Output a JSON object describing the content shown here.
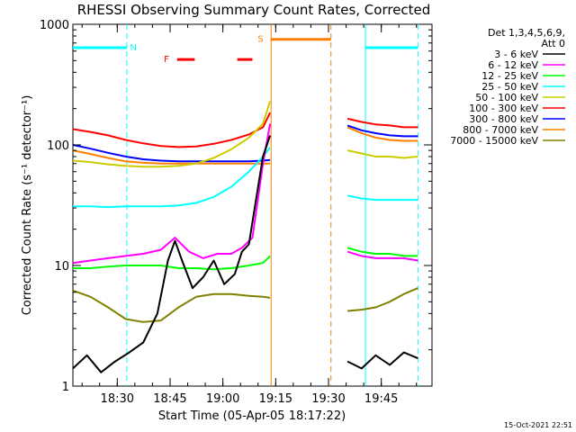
{
  "chart_data": {
    "type": "line",
    "title": "RHESSI Observing Summary Count Rates, Corrected",
    "xlabel": "Start Time (05-Apr-05 18:17:22)",
    "ylabel": "Corrected Count Rate (s⁻¹ detector⁻¹)",
    "yscale": "log",
    "ylim": [
      1,
      1000
    ],
    "xlim_minutes": [
      0,
      102
    ],
    "x_ticks": [
      {
        "label": "18:30",
        "value": 12.6
      },
      {
        "label": "18:45",
        "value": 27.6
      },
      {
        "label": "19:00",
        "value": 42.6
      },
      {
        "label": "19:15",
        "value": 57.6
      },
      {
        "label": "19:30",
        "value": 72.6
      },
      {
        "label": "19:45",
        "value": 87.6
      }
    ],
    "y_ticks": [
      {
        "label": "1",
        "value": 1
      },
      {
        "label": "10",
        "value": 10
      },
      {
        "label": "100",
        "value": 100
      },
      {
        "label": "1000",
        "value": 1000
      }
    ],
    "legend": {
      "header": [
        "Det 1,3,4,5,6,9,",
        "Att 0"
      ],
      "placement": "right"
    },
    "series": [
      {
        "name": "3 - 6 keV",
        "color": "#000000",
        "segments": [
          {
            "x": [
              0,
              4,
              8,
              12,
              16,
              20,
              24,
              27,
              29,
              31,
              34,
              37,
              40,
              43,
              46,
              48,
              50,
              52,
              54,
              56
            ],
            "y": [
              1.4,
              1.8,
              1.3,
              1.6,
              1.9,
              2.3,
              4,
              11,
              16,
              11,
              6.5,
              8,
              11,
              7,
              8.5,
              13,
              15,
              35,
              80,
              120
            ]
          },
          {
            "x": [
              78,
              82,
              86,
              90,
              94,
              98
            ],
            "y": [
              1.6,
              1.4,
              1.8,
              1.5,
              1.9,
              1.7
            ]
          }
        ]
      },
      {
        "name": "6 - 12 keV",
        "color": "#ff00ff",
        "segments": [
          {
            "x": [
              0,
              5,
              10,
              15,
              20,
              25,
              29,
              33,
              37,
              41,
              45,
              48,
              51,
              54,
              56
            ],
            "y": [
              10.5,
              11,
              11.5,
              12,
              12.5,
              13.5,
              17,
              13,
              11.5,
              12.5,
              12.5,
              14,
              17,
              70,
              150
            ]
          },
          {
            "x": [
              78,
              82,
              86,
              90,
              94,
              98
            ],
            "y": [
              13,
              12,
              11.5,
              11.5,
              11.5,
              11
            ]
          }
        ]
      },
      {
        "name": "12 - 25 keV",
        "color": "#00ff00",
        "segments": [
          {
            "x": [
              0,
              5,
              10,
              15,
              20,
              25,
              30,
              35,
              40,
              45,
              50,
              54,
              56
            ],
            "y": [
              9.5,
              9.5,
              9.8,
              10,
              10,
              10,
              9.5,
              9.5,
              9.3,
              9.5,
              10,
              10.5,
              12
            ]
          },
          {
            "x": [
              78,
              82,
              86,
              90,
              94,
              98
            ],
            "y": [
              14,
              13,
              12.5,
              12.5,
              12,
              12
            ]
          }
        ]
      },
      {
        "name": "25 - 50 keV",
        "color": "#00ffff",
        "segments": [
          {
            "x": [
              0,
              5,
              10,
              15,
              20,
              25,
              30,
              35,
              40,
              45,
              50,
              54,
              56
            ],
            "y": [
              31,
              31,
              30.5,
              31,
              31,
              31,
              31.5,
              33,
              37,
              45,
              60,
              80,
              95
            ]
          },
          {
            "x": [
              78,
              82,
              86,
              90,
              94,
              98
            ],
            "y": [
              38,
              36,
              35,
              35,
              35,
              35
            ]
          }
        ]
      },
      {
        "name": "50 - 100 keV",
        "color": "#cccc00",
        "segments": [
          {
            "x": [
              0,
              5,
              10,
              15,
              20,
              25,
              30,
              35,
              40,
              45,
              50,
              54,
              56
            ],
            "y": [
              74,
              72,
              69,
              67,
              66,
              66,
              67,
              70,
              78,
              92,
              115,
              150,
              230
            ]
          },
          {
            "x": [
              78,
              82,
              86,
              90,
              94,
              98
            ],
            "y": [
              90,
              85,
              80,
              80,
              78,
              80
            ]
          }
        ]
      },
      {
        "name": "100 - 300 keV",
        "color": "#ff0000",
        "segments": [
          {
            "x": [
              0,
              5,
              10,
              15,
              20,
              25,
              30,
              35,
              40,
              45,
              50,
              54,
              56
            ],
            "y": [
              135,
              128,
              120,
              110,
              103,
              98,
              96,
              97,
              102,
              110,
              122,
              140,
              185
            ]
          },
          {
            "x": [
              78,
              82,
              86,
              90,
              94,
              98
            ],
            "y": [
              165,
              155,
              148,
              145,
              140,
              140
            ]
          }
        ]
      },
      {
        "name": "300 - 800 keV",
        "color": "#0000ff",
        "segments": [
          {
            "x": [
              0,
              5,
              10,
              15,
              20,
              25,
              30,
              35,
              40,
              45,
              50,
              54,
              56
            ],
            "y": [
              100,
              93,
              86,
              80,
              76,
              74,
              73,
              73,
              73,
              73,
              73,
              74,
              75
            ]
          },
          {
            "x": [
              78,
              82,
              86,
              90,
              94,
              98
            ],
            "y": [
              145,
              132,
              125,
              120,
              118,
              118
            ]
          }
        ]
      },
      {
        "name": "800 - 7000 keV",
        "color": "#ff8000",
        "segments": [
          {
            "x": [
              0,
              5,
              10,
              15,
              20,
              25,
              30,
              35,
              40,
              45,
              50,
              54,
              56
            ],
            "y": [
              90,
              84,
              78,
              73,
              71,
              70,
              70,
              70,
              70,
              70,
              70,
              70,
              70
            ]
          },
          {
            "x": [
              78,
              82,
              86,
              90,
              94,
              98
            ],
            "y": [
              140,
              125,
              115,
              110,
              108,
              108
            ]
          }
        ]
      },
      {
        "name": "7000 - 15000 keV",
        "color": "#808000",
        "segments": [
          {
            "x": [
              0,
              5,
              10,
              15,
              20,
              25,
              30,
              35,
              40,
              45,
              50,
              54,
              56
            ],
            "y": [
              6.2,
              5.5,
              4.5,
              3.6,
              3.4,
              3.5,
              4.5,
              5.5,
              5.8,
              5.8,
              5.6,
              5.5,
              5.4
            ]
          },
          {
            "x": [
              78,
              82,
              86,
              90,
              94,
              98
            ],
            "y": [
              4.2,
              4.3,
              4.5,
              5,
              5.8,
              6.5
            ]
          }
        ]
      }
    ],
    "gap_minutes": [
      56.3,
      76.7
    ],
    "night_bars": [
      {
        "label": "N",
        "from": 0,
        "to": 15.3,
        "level": 640,
        "label_at": 17.2
      },
      {
        "from": 83.1,
        "to": 98,
        "level": 640
      }
    ],
    "saa_bar": {
      "label": "S",
      "from": 56.3,
      "to": 73.3,
      "level": 750,
      "label_at": 53.3
    },
    "flare_bars": {
      "label": "F",
      "label_at": 26.6,
      "level": 510,
      "ranges": [
        [
          29.6,
          34.6
        ],
        [
          46.7,
          51
        ]
      ]
    },
    "vlines": {
      "cyan_dashed": [
        15.3,
        98
      ],
      "cyan_solid": [
        83.1
      ],
      "orange_solid": [
        56.3
      ],
      "orange_dashed": [
        73.3
      ]
    },
    "colors": {
      "night": "#00ffff",
      "saa": "#ff8000",
      "flare": "#ff0000",
      "axes": "#000000",
      "background": "#ffffff"
    }
  },
  "footer": {
    "timestamp": "15-Oct-2021 22:51"
  }
}
